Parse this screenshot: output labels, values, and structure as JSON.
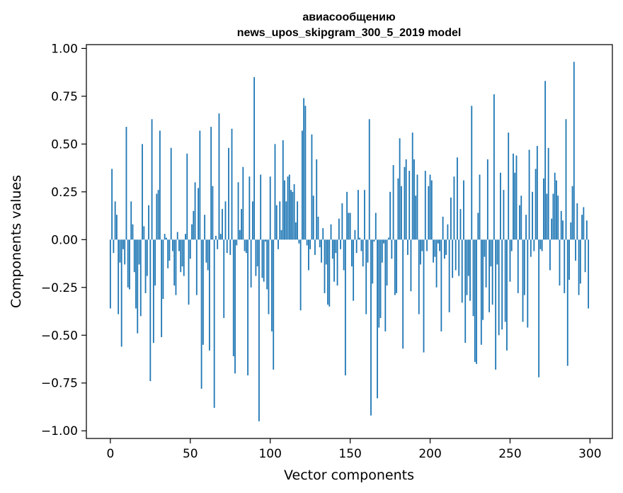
{
  "chart_data": {
    "type": "bar",
    "title": "авиасообщению",
    "subtitle": "news_upos_skipgram_300_5_2019 model",
    "xlabel": "Vector components",
    "ylabel": "Components values",
    "xlim": [
      -15,
      314
    ],
    "ylim": [
      -1.04,
      1.02
    ],
    "xticks": [
      0,
      50,
      100,
      150,
      200,
      250,
      300
    ],
    "xtick_labels": [
      "0",
      "50",
      "100",
      "150",
      "200",
      "250",
      "300"
    ],
    "yticks": [
      -1.0,
      -0.75,
      -0.5,
      -0.25,
      0.0,
      0.25,
      0.5,
      0.75,
      1.0
    ],
    "ytick_labels": [
      "−1.00",
      "−0.75",
      "−0.50",
      "−0.25",
      "0.00",
      "0.25",
      "0.50",
      "0.75",
      "1.00"
    ],
    "bar_color": "#1f77b4",
    "grid": false,
    "series": [
      {
        "values": [
          -0.36,
          0.37,
          -0.07,
          0.2,
          0.13,
          -0.39,
          -0.12,
          -0.56,
          -0.05,
          -0.13,
          0.59,
          -0.25,
          -0.26,
          0.2,
          0.08,
          -0.17,
          -0.36,
          -0.49,
          -0.13,
          -0.4,
          0.5,
          0.07,
          -0.28,
          -0.19,
          0.18,
          -0.74,
          0.63,
          -0.54,
          -0.24,
          0.24,
          0.26,
          0.57,
          -0.51,
          -0.31,
          0.03,
          0.01,
          -0.15,
          -0.11,
          0.48,
          -0.06,
          -0.24,
          -0.29,
          0.04,
          -0.06,
          -0.17,
          -0.14,
          -0.19,
          0.03,
          0.45,
          -0.34,
          -0.1,
          0.08,
          0.15,
          0.3,
          -0.29,
          0.27,
          0.57,
          -0.78,
          -0.55,
          0.13,
          -0.12,
          -0.16,
          -0.58,
          0.59,
          0.28,
          -0.88,
          0.02,
          -0.05,
          0.66,
          0.03,
          0.16,
          -0.41,
          0.2,
          -0.07,
          0.48,
          -0.08,
          0.58,
          -0.61,
          -0.7,
          -0.03,
          0.3,
          0.05,
          0.16,
          0.38,
          -0.06,
          -0.07,
          -0.71,
          0.33,
          -0.25,
          0.2,
          0.85,
          -0.19,
          -0.14,
          -0.95,
          0.34,
          -0.2,
          -0.22,
          -0.01,
          -0.26,
          -0.39,
          0.33,
          -0.48,
          -0.68,
          0.5,
          0.18,
          -0.05,
          0.2,
          0.05,
          0.52,
          0.31,
          0.2,
          0.33,
          0.34,
          0.26,
          0.25,
          0.29,
          0.09,
          0.2,
          -0.02,
          -0.37,
          0.57,
          0.74,
          0.7,
          -0.03,
          -0.16,
          -0.05,
          0.55,
          0.23,
          -0.08,
          0.42,
          0.12,
          -0.04,
          -0.12,
          0.06,
          -0.28,
          -0.13,
          -0.34,
          -0.35,
          0.08,
          -0.1,
          -0.22,
          -0.07,
          -0.24,
          0.11,
          -0.05,
          0.19,
          -0.16,
          -0.71,
          0.25,
          0.14,
          0.14,
          -0.14,
          -0.32,
          0.05,
          -0.07,
          0.26,
          0.01,
          -0.06,
          -0.14,
          0.26,
          -0.39,
          -0.12,
          0.63,
          -0.92,
          -0.23,
          -0.01,
          0.14,
          -0.83,
          -0.46,
          -0.41,
          -0.12,
          -0.02,
          -0.48,
          -0.24,
          0.01,
          0.25,
          -0.1,
          0.39,
          -0.29,
          -0.28,
          0.32,
          0.53,
          0.28,
          -0.57,
          0.38,
          0.42,
          -0.08,
          0.36,
          -0.27,
          0.56,
          0.42,
          0.23,
          0.34,
          -0.39,
          -0.13,
          -0.06,
          -0.59,
          0.36,
          -0.06,
          0.28,
          0.34,
          0.31,
          -0.12,
          -0.09,
          -0.25,
          -0.02,
          -0.06,
          -0.48,
          0.12,
          -0.1,
          -0.08,
          0.08,
          -0.38,
          0.22,
          -0.2,
          0.33,
          -0.16,
          0.43,
          -0.19,
          0.16,
          -0.33,
          0.31,
          -0.54,
          -0.29,
          -0.19,
          -0.32,
          0.7,
          -0.4,
          -0.64,
          -0.65,
          0.14,
          0.34,
          -0.55,
          -0.42,
          -0.09,
          -0.25,
          0.42,
          -0.38,
          -0.14,
          -0.34,
          0.76,
          -0.68,
          -0.13,
          -0.5,
          0.35,
          -0.47,
          0.26,
          -0.43,
          -0.58,
          0.56,
          -0.22,
          -0.06,
          0.45,
          0.35,
          0.44,
          -0.28,
          0.18,
          0.23,
          -0.43,
          -0.29,
          0.13,
          -0.46,
          0.47,
          -0.09,
          0.25,
          -0.06,
          0.37,
          0.49,
          -0.72,
          -0.05,
          -0.06,
          0.32,
          0.83,
          0.24,
          0.48,
          -0.16,
          0.11,
          0.24,
          0.35,
          0.31,
          0.23,
          -0.24,
          0.15,
          0.1,
          -0.28,
          0.63,
          -0.66,
          -0.21,
          0.09,
          0.28,
          0.93,
          -0.11,
          0.19,
          -0.29,
          -0.23,
          0.13,
          0.17,
          -0.17,
          0.1,
          -0.36
        ]
      }
    ]
  }
}
